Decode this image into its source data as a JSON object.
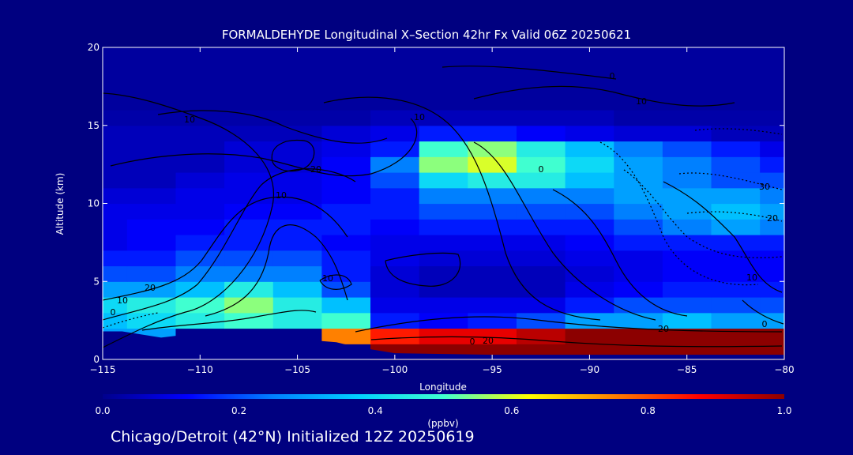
{
  "header": {
    "title": "FORMALDEHYDE Longitudinal X–Section 42hr  Fx Valid 06Z 20250621"
  },
  "footer": {
    "caption": "Chicago/Detroit (42°N) Initialized 12Z 20250619"
  },
  "colors": {
    "background": "#000080",
    "colormap": [
      "#00008c",
      "#0000ff",
      "#0080ff",
      "#00d0ff",
      "#40ffd0",
      "#ffff00",
      "#ff8000",
      "#ff0000",
      "#8c0000"
    ]
  },
  "chart_data": {
    "type": "heatmap",
    "title": "FORMALDEHYDE Longitudinal X–Section 42hr  Fx Valid 06Z 20250621",
    "xlabel": "Longitude",
    "ylabel": "Altitude (km)",
    "xlim": [
      -115,
      -80
    ],
    "ylim": [
      0,
      20
    ],
    "xticks": [
      "−115",
      "−110",
      "−105",
      "−100",
      "−95",
      "−90",
      "−85",
      "−80"
    ],
    "yticks": [
      "0",
      "5",
      "10",
      "15",
      "20"
    ],
    "colorbar": {
      "label": "(ppbv)",
      "range": [
        0.0,
        1.0
      ],
      "ticks": [
        "0.0",
        "0.2",
        "0.4",
        "0.6",
        "0.8",
        "1.0"
      ]
    },
    "x": [
      -115,
      -112.5,
      -110,
      -107.5,
      -105,
      -102.5,
      -100,
      -97.5,
      -95,
      -92.5,
      -90,
      -87.5,
      -85,
      -82.5,
      -80
    ],
    "y": [
      0.5,
      1.5,
      2.5,
      3.5,
      4.5,
      5.5,
      6.5,
      7.5,
      8.5,
      9.5,
      10.5,
      11.5,
      12.5,
      13.5,
      14.5,
      15.5,
      16.5,
      17.5,
      18.5,
      19.5
    ],
    "z": [
      [
        0.0,
        0.0,
        0.0,
        0.0,
        0.0,
        0.0,
        1.0,
        1.0,
        1.0,
        1.0,
        1.0,
        1.0,
        1.0,
        1.0,
        1.0
      ],
      [
        0.3,
        0.3,
        0.0,
        0.0,
        0.0,
        0.75,
        0.85,
        0.9,
        0.9,
        0.95,
        1.0,
        1.0,
        1.0,
        1.0,
        1.0
      ],
      [
        0.35,
        0.4,
        0.45,
        0.5,
        0.45,
        0.5,
        0.15,
        0.12,
        0.15,
        0.2,
        0.3,
        0.3,
        0.35,
        0.3,
        0.3
      ],
      [
        0.4,
        0.45,
        0.5,
        0.55,
        0.45,
        0.35,
        0.1,
        0.1,
        0.1,
        0.1,
        0.15,
        0.2,
        0.2,
        0.2,
        0.2
      ],
      [
        0.3,
        0.3,
        0.35,
        0.45,
        0.35,
        0.2,
        0.08,
        0.05,
        0.05,
        0.05,
        0.1,
        0.12,
        0.15,
        0.15,
        0.15
      ],
      [
        0.2,
        0.2,
        0.25,
        0.25,
        0.25,
        0.15,
        0.08,
        0.05,
        0.05,
        0.05,
        0.08,
        0.1,
        0.12,
        0.12,
        0.12
      ],
      [
        0.15,
        0.15,
        0.2,
        0.2,
        0.2,
        0.15,
        0.1,
        0.08,
        0.08,
        0.08,
        0.1,
        0.1,
        0.12,
        0.12,
        0.12
      ],
      [
        0.1,
        0.12,
        0.15,
        0.15,
        0.15,
        0.12,
        0.1,
        0.1,
        0.1,
        0.1,
        0.12,
        0.15,
        0.15,
        0.15,
        0.15
      ],
      [
        0.1,
        0.12,
        0.12,
        0.15,
        0.15,
        0.15,
        0.12,
        0.15,
        0.15,
        0.15,
        0.15,
        0.2,
        0.25,
        0.3,
        0.25
      ],
      [
        0.1,
        0.1,
        0.1,
        0.12,
        0.12,
        0.15,
        0.15,
        0.2,
        0.2,
        0.2,
        0.2,
        0.25,
        0.3,
        0.35,
        0.3
      ],
      [
        0.08,
        0.08,
        0.1,
        0.1,
        0.1,
        0.12,
        0.15,
        0.25,
        0.25,
        0.25,
        0.25,
        0.3,
        0.3,
        0.3,
        0.25
      ],
      [
        0.05,
        0.05,
        0.08,
        0.1,
        0.1,
        0.12,
        0.2,
        0.4,
        0.45,
        0.45,
        0.35,
        0.3,
        0.25,
        0.2,
        0.2
      ],
      [
        0.05,
        0.05,
        0.05,
        0.08,
        0.08,
        0.12,
        0.25,
        0.55,
        0.6,
        0.5,
        0.4,
        0.3,
        0.25,
        0.2,
        0.15
      ],
      [
        0.05,
        0.05,
        0.05,
        0.08,
        0.08,
        0.1,
        0.15,
        0.5,
        0.55,
        0.45,
        0.35,
        0.25,
        0.2,
        0.15,
        0.1
      ],
      [
        0.05,
        0.05,
        0.05,
        0.05,
        0.05,
        0.08,
        0.1,
        0.15,
        0.15,
        0.12,
        0.1,
        0.08,
        0.08,
        0.05,
        0.05
      ],
      [
        0.03,
        0.03,
        0.03,
        0.03,
        0.03,
        0.03,
        0.05,
        0.05,
        0.05,
        0.05,
        0.05,
        0.03,
        0.03,
        0.03,
        0.03
      ],
      [
        0.02,
        0.02,
        0.02,
        0.02,
        0.02,
        0.02,
        0.02,
        0.02,
        0.02,
        0.02,
        0.02,
        0.02,
        0.02,
        0.02,
        0.02
      ],
      [
        0.02,
        0.02,
        0.02,
        0.02,
        0.02,
        0.02,
        0.02,
        0.02,
        0.02,
        0.02,
        0.02,
        0.02,
        0.02,
        0.02,
        0.02
      ],
      [
        0.02,
        0.02,
        0.02,
        0.02,
        0.02,
        0.02,
        0.02,
        0.02,
        0.02,
        0.02,
        0.02,
        0.02,
        0.02,
        0.02,
        0.02
      ],
      [
        0.02,
        0.02,
        0.02,
        0.02,
        0.02,
        0.02,
        0.02,
        0.02,
        0.02,
        0.02,
        0.02,
        0.02,
        0.02,
        0.02,
        0.02
      ]
    ],
    "terrain": {
      "x": [
        -115,
        -114,
        -112,
        -110,
        -108,
        -106,
        -105,
        -104,
        -103,
        -102,
        -101,
        -100,
        -95,
        -90,
        -85,
        -80
      ],
      "y": [
        1.8,
        1.8,
        1.4,
        1.7,
        1.7,
        1.9,
        1.6,
        1.2,
        1.1,
        0.8,
        0.6,
        0.4,
        0.3,
        0.3,
        0.3,
        0.3
      ]
    },
    "contour_labels": [
      "20",
      "10",
      "0",
      "20",
      "10",
      "10",
      "20",
      "10",
      "0",
      "10",
      "10",
      "0",
      "30",
      "20",
      "10",
      "0",
      "20",
      "0"
    ]
  }
}
